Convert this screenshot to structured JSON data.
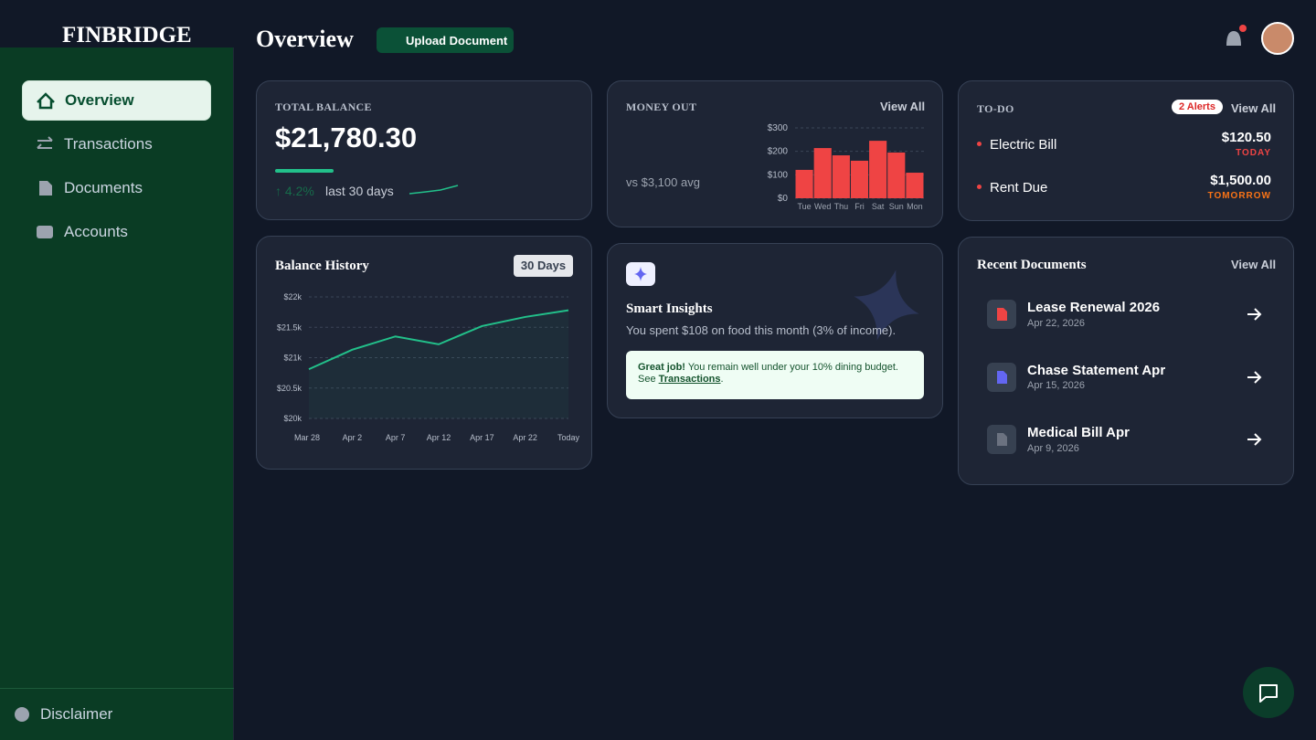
{
  "brand": "FINBRIDGE",
  "nav": [
    "Overview",
    "Transactions",
    "Documents",
    "Accounts"
  ],
  "footer": "Disclaimer",
  "header": {
    "title": "Overview",
    "button": "Upload Document"
  },
  "total_balance": {
    "label": "TOTAL BALANCE",
    "amount": "$21,780.30",
    "change": "↑ 4.2%",
    "period": "last 30 days"
  },
  "money_out": {
    "label": "MONEY OUT",
    "link": "View All",
    "note": "vs $3,100 avg"
  },
  "todo": {
    "label": "TO-DO",
    "badge": "2 Alerts",
    "link": "View All",
    "items": [
      {
        "name": "Electric Bill",
        "amount": "$120.50",
        "due": "TODAY"
      },
      {
        "name": "Rent Due",
        "amount": "$1,500.00",
        "due": "TOMORROW"
      }
    ]
  },
  "balance_history": {
    "title": "Balance History",
    "range": "30 Days"
  },
  "insights": {
    "title": "Smart Insights",
    "text": "You spent $108 on food this month (3% of income).",
    "tip_strong": "Great job!",
    "tip": "You remain well under your 10% dining budget. See",
    "tip_link": "Transactions",
    "tip_end": "."
  },
  "recent_documents": {
    "title": "Recent Documents",
    "link": "View All",
    "items": [
      {
        "name": "Lease Renewal 2026",
        "date": "Apr 22, 2026"
      },
      {
        "name": "Chase Statement Apr",
        "date": "Apr 15, 2026"
      },
      {
        "name": "Medical Bill Apr",
        "date": "Apr 9, 2026"
      }
    ]
  },
  "chart_data": [
    {
      "type": "bar",
      "categories": [
        "Tue",
        "Wed",
        "Thu",
        "Fri",
        "Sat",
        "Sun",
        "Mon"
      ],
      "values": [
        121,
        214,
        183,
        160,
        245,
        195,
        109
      ],
      "color": "#ef4444",
      "ylim": [
        0,
        300
      ],
      "yticks": [
        {
          "value": 0,
          "label": "$0"
        },
        {
          "value": 100,
          "label": "$100"
        },
        {
          "value": 200,
          "label": "$200"
        },
        {
          "value": 300,
          "label": "$300"
        }
      ],
      "grid": true
    },
    {
      "type": "line",
      "categories": [
        "Mar 28",
        "Apr 2",
        "Apr 7",
        "Apr 12",
        "Apr 17",
        "Apr 22",
        "Today"
      ],
      "values": [
        20810,
        21130,
        21350,
        21220,
        21520,
        21670,
        21780
      ],
      "color": "#22c08a",
      "ylim": [
        20000,
        22000
      ],
      "yticks": [
        {
          "value": 20000,
          "label": "$20k"
        },
        {
          "value": 20500,
          "label": "$20.5k"
        },
        {
          "value": 21000,
          "label": "$21k"
        },
        {
          "value": 21500,
          "label": "$21.5k"
        },
        {
          "value": 22000,
          "label": "$22k"
        }
      ],
      "grid": true
    }
  ]
}
